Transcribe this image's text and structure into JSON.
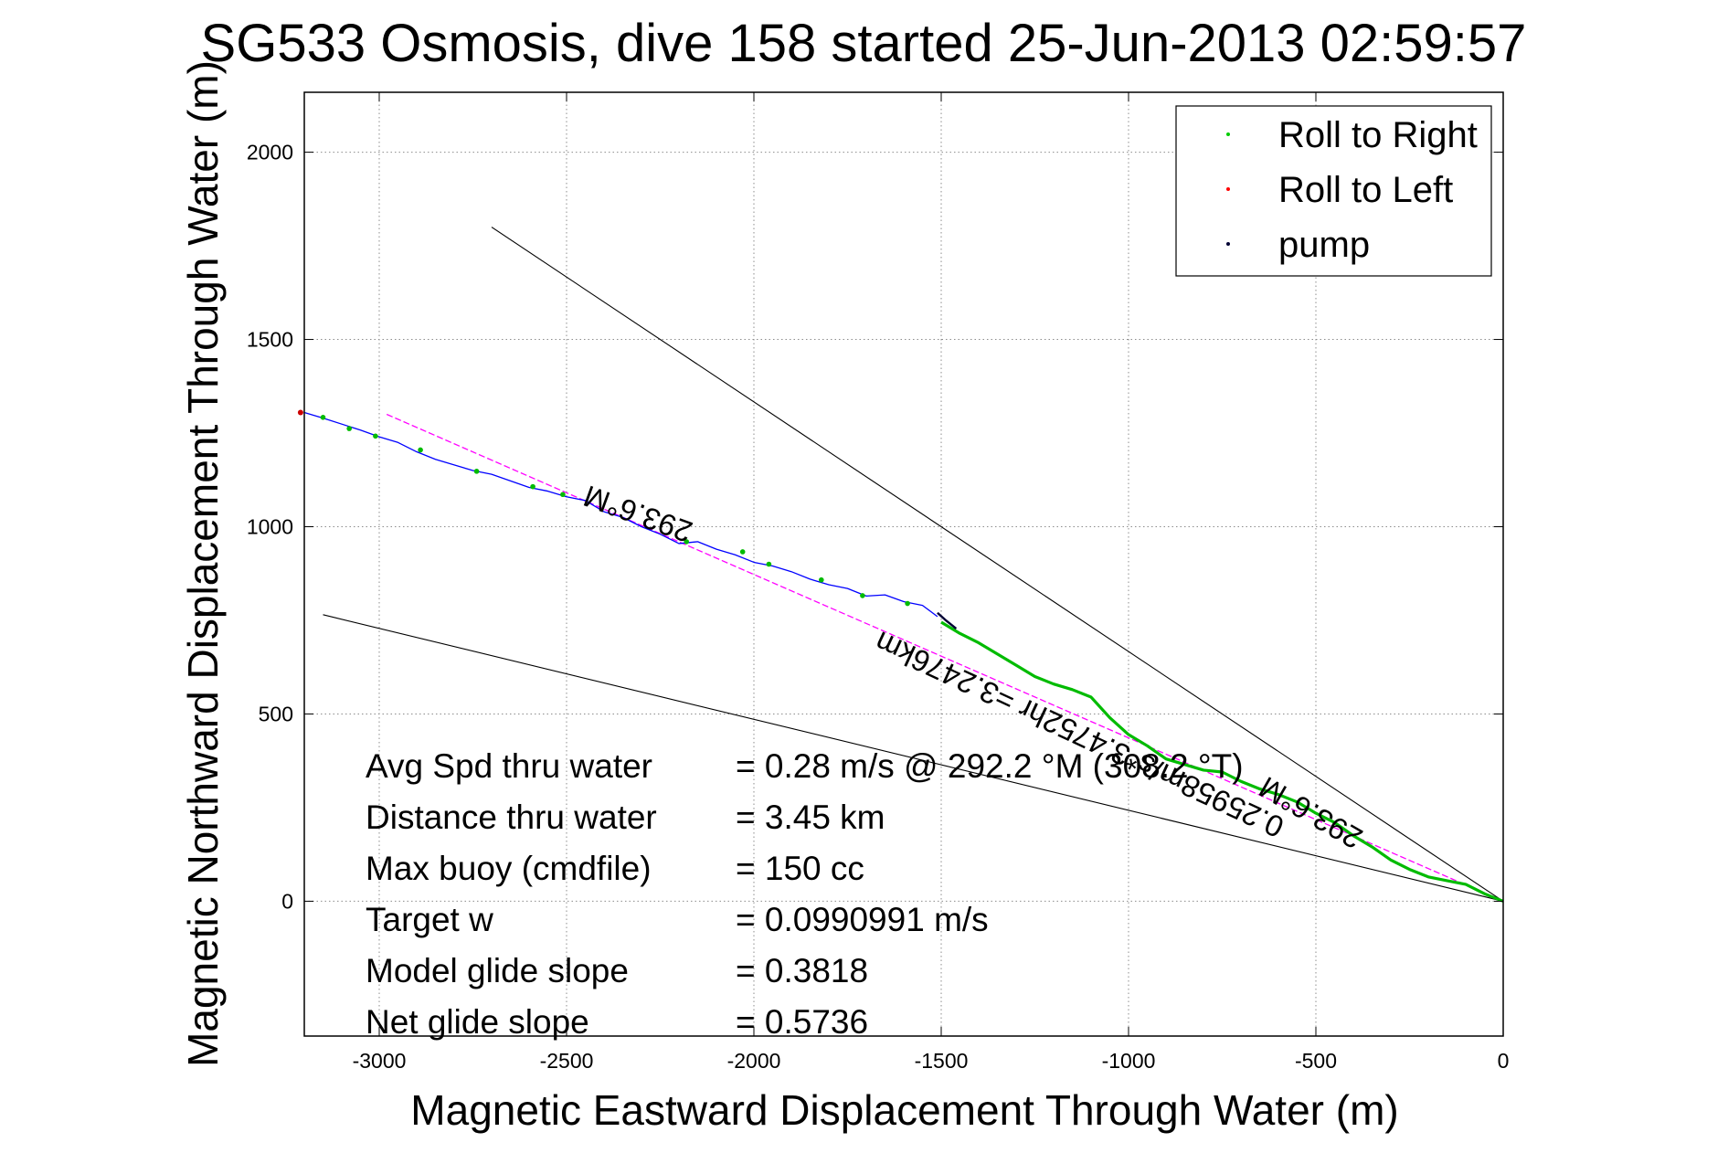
{
  "chart_data": {
    "type": "line",
    "title": "SG533 Osmosis, dive 158 started 25-Jun-2013 02:59:57",
    "xlabel": "Magnetic Eastward Displacement Through Water (m)",
    "ylabel": "Magnetic Northward Displacement Through Water (m)",
    "xlim": [
      -3200,
      0
    ],
    "ylim": [
      -360,
      2160
    ],
    "xticks": [
      -3000,
      -2500,
      -2000,
      -1500,
      -1000,
      -500,
      0
    ],
    "yticks": [
      0,
      500,
      1000,
      1500,
      2000
    ],
    "grid": true,
    "legend": {
      "placement": "top-right",
      "entries": [
        {
          "label": "Roll to Right",
          "color": "#00cc00"
        },
        {
          "label": "Roll to Left",
          "color": "#ff0000"
        },
        {
          "label": "pump",
          "color": "#000033"
        }
      ]
    },
    "track": {
      "color": "#0000ff",
      "x": [
        -3200,
        -3150,
        -3050,
        -3000,
        -2950,
        -2900,
        -2850,
        -2750,
        -2700,
        -2600,
        -2550,
        -2500,
        -2450,
        -2400,
        -2350,
        -2300,
        -2250,
        -2200,
        -2150,
        -2100,
        -2050,
        -2000,
        -1950,
        -1900,
        -1850,
        -1800,
        -1750,
        -1700,
        -1650,
        -1600,
        -1550,
        -1510
      ],
      "y": [
        1305,
        1290,
        1258,
        1240,
        1225,
        1200,
        1180,
        1150,
        1140,
        1105,
        1095,
        1080,
        1070,
        1040,
        1025,
        1000,
        980,
        955,
        960,
        940,
        925,
        905,
        895,
        880,
        860,
        845,
        835,
        815,
        818,
        800,
        790,
        760
      ]
    },
    "roll_right_track": {
      "color": "#00bb00",
      "x": [
        -1500,
        -1450,
        -1400,
        -1350,
        -1300,
        -1250,
        -1200,
        -1150,
        -1100,
        -1050,
        -1000,
        -950,
        -900,
        -850,
        -800,
        -750,
        -700,
        -650,
        -600,
        -550,
        -500,
        -450,
        -400,
        -350,
        -300,
        -250,
        -200,
        -150,
        -100,
        -50,
        0
      ],
      "y": [
        745,
        715,
        690,
        660,
        630,
        600,
        580,
        565,
        545,
        490,
        445,
        415,
        380,
        365,
        350,
        345,
        320,
        300,
        285,
        265,
        235,
        210,
        175,
        145,
        110,
        85,
        65,
        55,
        45,
        20,
        0
      ]
    },
    "pump_track": {
      "color": "#000033",
      "x": [
        -1510,
        -1490,
        -1460
      ],
      "y": [
        770,
        752,
        728
      ]
    },
    "roll_right_points": {
      "x": [
        -3150,
        -3080,
        -3010,
        -2890,
        -2740,
        -2590,
        -2510,
        -2180,
        -2030,
        -1960,
        -1820,
        -1710,
        -1590
      ],
      "y": [
        1292,
        1262,
        1242,
        1205,
        1148,
        1107,
        1086,
        960,
        933,
        900,
        858,
        816,
        795
      ]
    },
    "roll_left_points": {
      "x": [
        -3210
      ],
      "y": [
        1305
      ]
    },
    "lines": [
      {
        "name": "heading-upper",
        "color": "#000000",
        "x": [
          -2700,
          0
        ],
        "y": [
          1800,
          0
        ]
      },
      {
        "name": "heading-lower",
        "color": "#000000",
        "x": [
          -3150,
          0
        ],
        "y": [
          765,
          0
        ]
      },
      {
        "name": "net-heading",
        "color": "#ff00ff",
        "x": [
          -2980,
          0
        ],
        "y": [
          1300,
          0
        ]
      }
    ],
    "annotations": [
      {
        "text": "293.6°M",
        "x": -2300,
        "y": 1060,
        "angle": 20,
        "upside_down": true
      },
      {
        "text": "0.25958m/s*3.4752hr =3.2476km",
        "x": -1120,
        "y": 470,
        "angle": 25,
        "upside_down": true
      },
      {
        "text": "293.6°M",
        "x": -500,
        "y": 260,
        "angle": 30,
        "upside_down": true
      }
    ],
    "stats": [
      {
        "label": "Avg Spd thru water",
        "value": "=  0.28 m/s @ 292.2  °M (308.2 °T)"
      },
      {
        "label": "Distance thru water",
        "value": "=  3.45 km"
      },
      {
        "label": "Max buoy (cmdfile)",
        "value": "= 150 cc"
      },
      {
        "label": "Target w",
        "value": "= 0.0990991 m/s"
      },
      {
        "label": "Model glide slope",
        "value": "= 0.3818"
      },
      {
        "label": "Net glide slope",
        "value": "= 0.5736"
      }
    ]
  }
}
